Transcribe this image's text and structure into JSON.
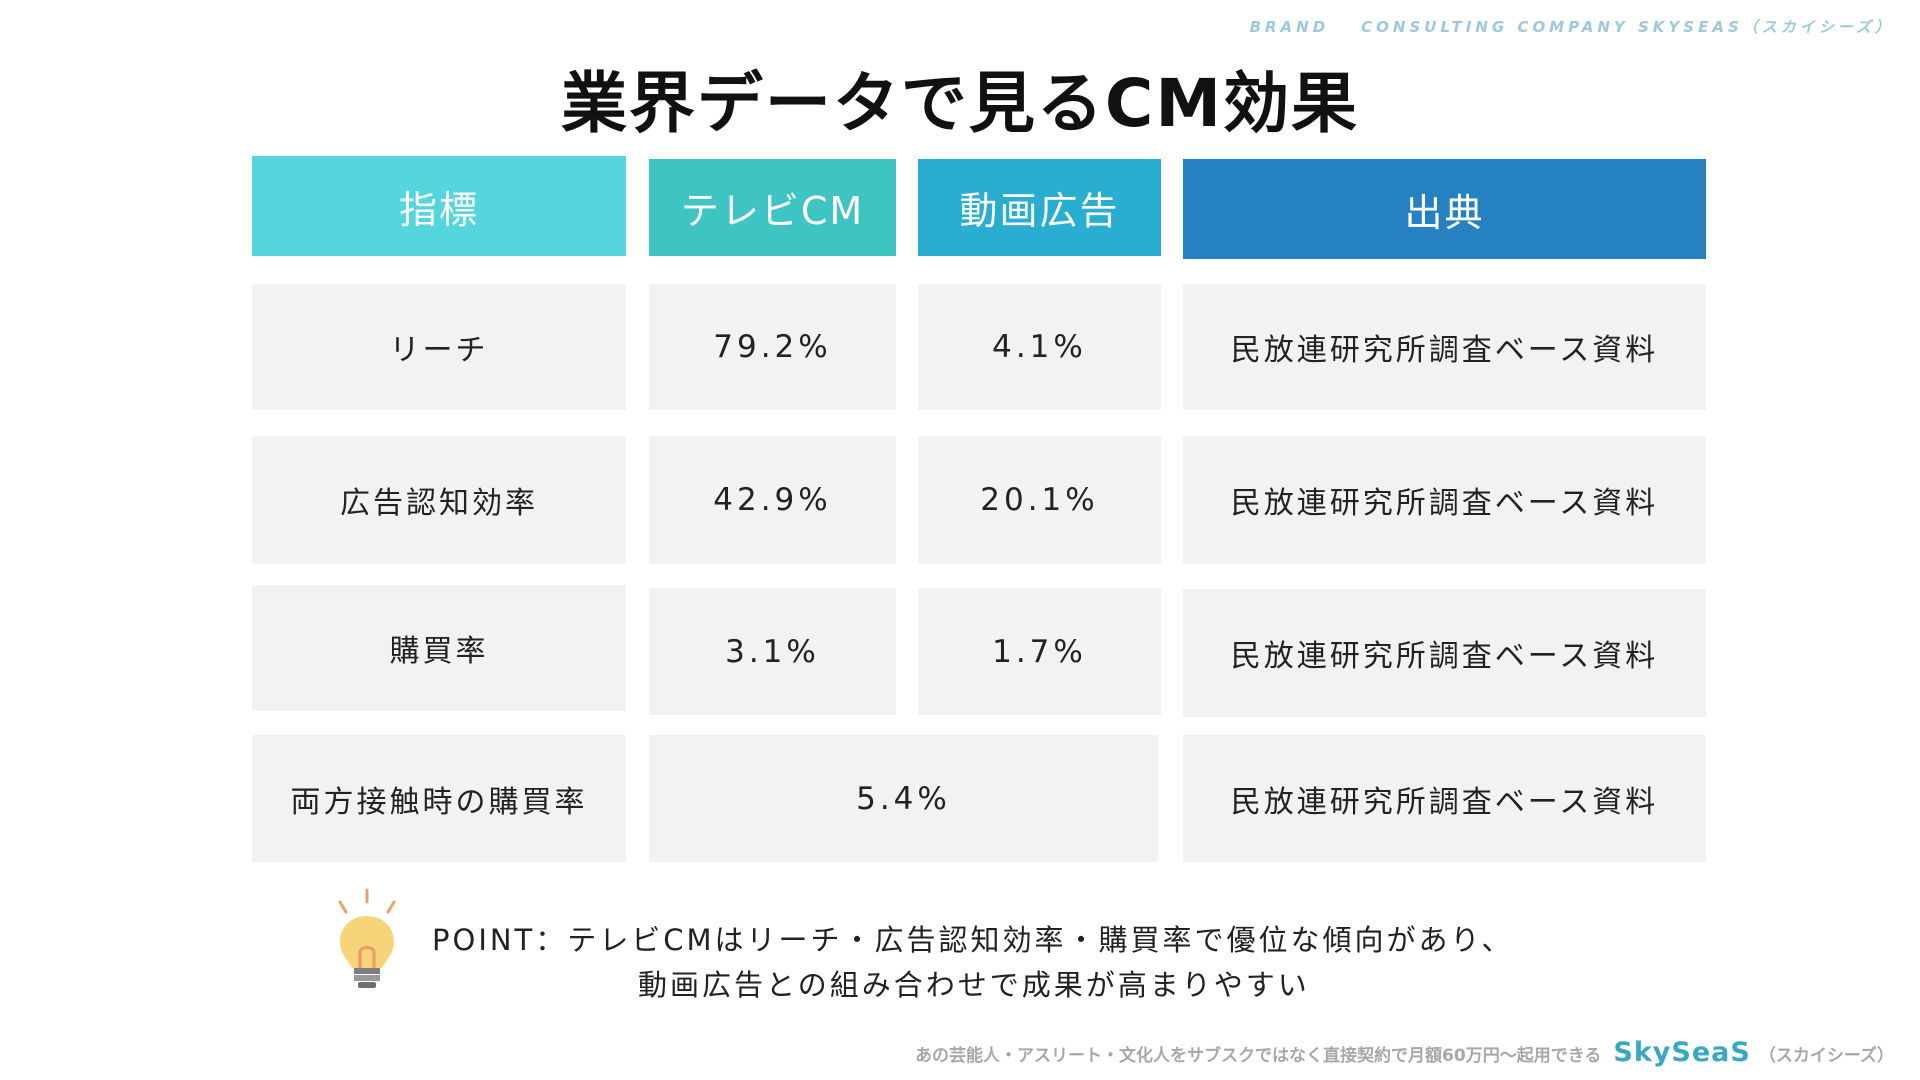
{
  "brand": {
    "left": "BRAND",
    "right": "CONSULTING COMPANY SKYSEAS（スカイシーズ）"
  },
  "title": "業界データで見るCM効果",
  "colors": {
    "header_indicator": "#55d6de",
    "header_tv": "#3ec4c2",
    "header_video": "#29aed1",
    "header_source": "#2581c1",
    "cell_bg": "#f2f2f2"
  },
  "table": {
    "headers": [
      "指標",
      "テレビCM",
      "動画広告",
      "出典"
    ],
    "rows": [
      {
        "label": "リーチ",
        "tv": "79.2%",
        "video": "4.1%",
        "source": "民放連研究所調査ベース資料"
      },
      {
        "label": "広告認知効率",
        "tv": "42.9%",
        "video": "20.1%",
        "source": "民放連研究所調査ベース資料"
      },
      {
        "label": "購買率",
        "tv": "3.1%",
        "video": "1.7%",
        "source": "民放連研究所調査ベース資料"
      },
      {
        "label": "両方接触時の購買率",
        "combined": "5.4%",
        "source": "民放連研究所調査ベース資料"
      }
    ]
  },
  "point": {
    "icon": "lightbulb-icon",
    "line1": "POINT：テレビCMはリーチ・広告認知効率・購買率で優位な傾向があり、",
    "line2": "動画広告との組み合わせで成果が高まりやすい"
  },
  "footer": {
    "tagline": "あの芸能人・アスリート・文化人をサブスクではなく直接契約で月額60万円〜起用できる",
    "logo_a": "Sky",
    "logo_b": "SeaS",
    "suffix": "（スカイシーズ）"
  }
}
